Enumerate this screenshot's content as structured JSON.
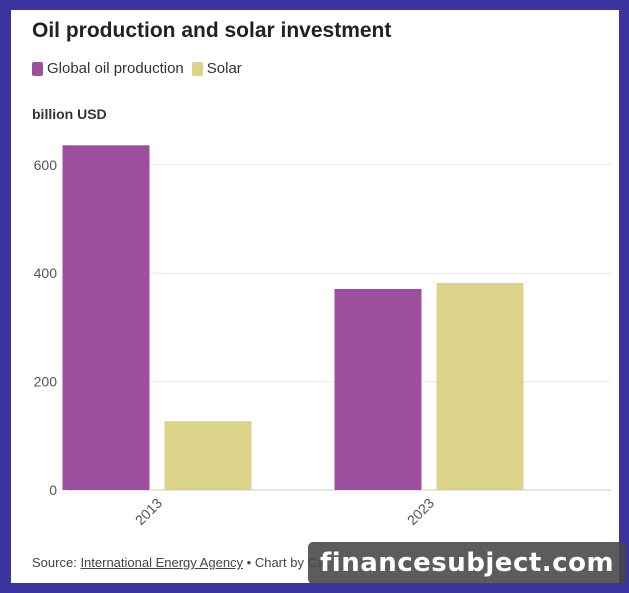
{
  "colors": {
    "oil": "#9c4f9e",
    "solar": "#dcd38a",
    "grid": "#e8e8e8",
    "axis": "#cccccc",
    "tick": "#555555"
  },
  "chart_data": {
    "type": "bar",
    "title": "Oil production and solar investment",
    "ylabel": "billion USD",
    "categories": [
      "2013",
      "2023"
    ],
    "series": [
      {
        "name": "Global oil production",
        "values": [
          636,
          371
        ]
      },
      {
        "name": "Solar",
        "values": [
          127,
          382
        ]
      }
    ],
    "ylim": [
      0,
      650
    ],
    "yticks": [
      0,
      200,
      400,
      600
    ],
    "grid": true,
    "legend_position": "top-left"
  },
  "footer": {
    "source_prefix": "Source:",
    "source_link": "International Energy Agency",
    "credit": "• Chart by Ca"
  },
  "watermark": "financesubject.com"
}
